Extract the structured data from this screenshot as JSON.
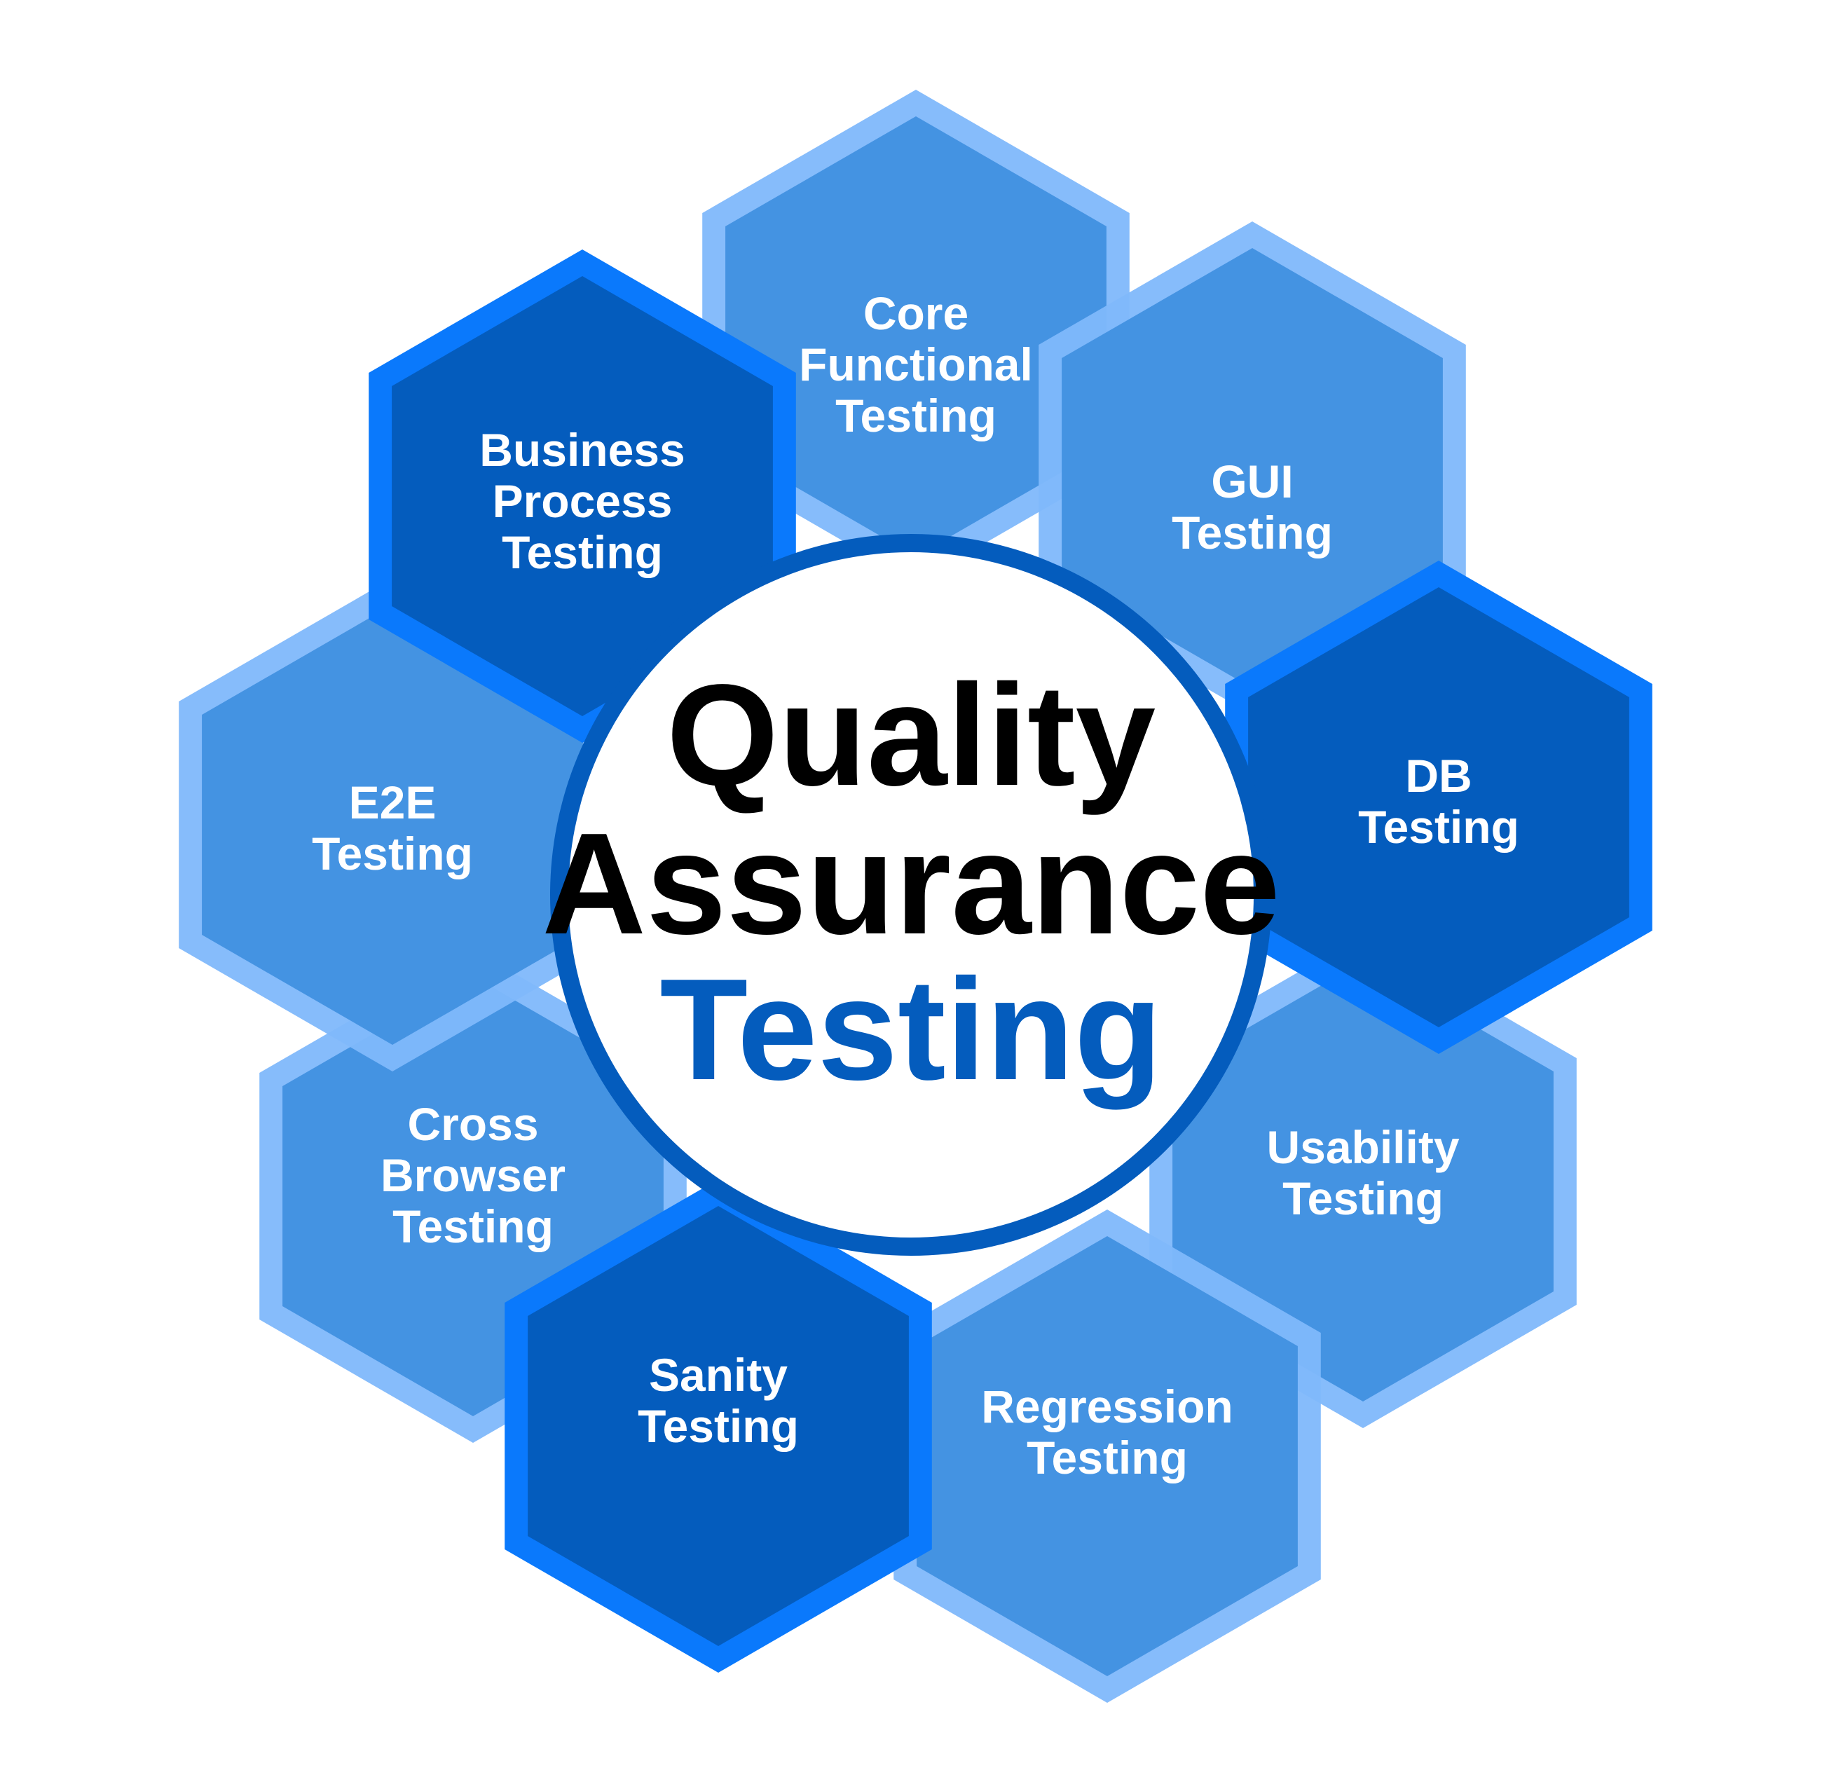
{
  "center": {
    "line1": "Quality",
    "line2": "Assurance",
    "line3": "Testing"
  },
  "hexagons": [
    {
      "name": "core-functional-testing",
      "lines": [
        "Core",
        "Functional",
        "Testing"
      ],
      "shade": "light"
    },
    {
      "name": "gui-testing",
      "lines": [
        "GUI",
        "Testing"
      ],
      "shade": "light"
    },
    {
      "name": "usability-testing",
      "lines": [
        "Usability",
        "Testing"
      ],
      "shade": "light"
    },
    {
      "name": "regression-testing",
      "lines": [
        "Regression",
        "Testing"
      ],
      "shade": "light"
    },
    {
      "name": "cross-browser-testing",
      "lines": [
        "Cross",
        "Browser",
        "Testing"
      ],
      "shade": "light"
    },
    {
      "name": "e2e-testing",
      "lines": [
        "E2E",
        "Testing"
      ],
      "shade": "light"
    },
    {
      "name": "business-process-testing",
      "lines": [
        "Business",
        "Process",
        "Testing"
      ],
      "shade": "dark"
    },
    {
      "name": "db-testing",
      "lines": [
        "DB",
        "Testing"
      ],
      "shade": "dark"
    },
    {
      "name": "sanity-testing",
      "lines": [
        "Sanity",
        "Testing"
      ],
      "shade": "dark"
    }
  ],
  "colors": {
    "light_border": "#7fb8fb",
    "light_fill": "#3f8fe0",
    "dark_border": "#0a79fc",
    "dark_fill": "#045cbd",
    "circle_border": "#045cbd",
    "circle_fill": "#ffffff",
    "title_dark": "#000000",
    "title_accent": "#045cbd",
    "label_text": "#ffffff"
  }
}
